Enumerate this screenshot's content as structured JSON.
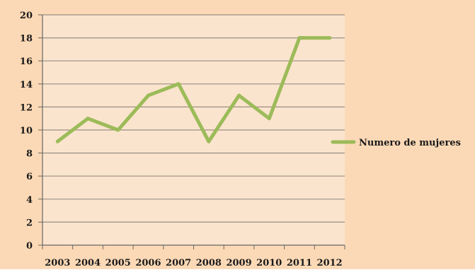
{
  "chart_data": {
    "type": "line",
    "title": "",
    "xlabel": "",
    "ylabel": "",
    "categories": [
      "2003",
      "2004",
      "2005",
      "2006",
      "2007",
      "2008",
      "2009",
      "2010",
      "2011",
      "2012"
    ],
    "series": [
      {
        "name": "Numero de mujeres",
        "values": [
          9,
          11,
          10,
          13,
          14,
          9,
          13,
          11,
          18,
          18
        ]
      }
    ],
    "ylim": [
      0,
      20
    ],
    "yticks": [
      0,
      2,
      4,
      6,
      8,
      10,
      12,
      14,
      16,
      18,
      20
    ],
    "grid": "horizontal",
    "legend": "right"
  },
  "colors": {
    "outer_background": "#fcd9b6",
    "plot_background": "#fbe4cd",
    "gridline": "#9a8f86",
    "axis": "#666666",
    "series_line": "#9cbb59"
  }
}
